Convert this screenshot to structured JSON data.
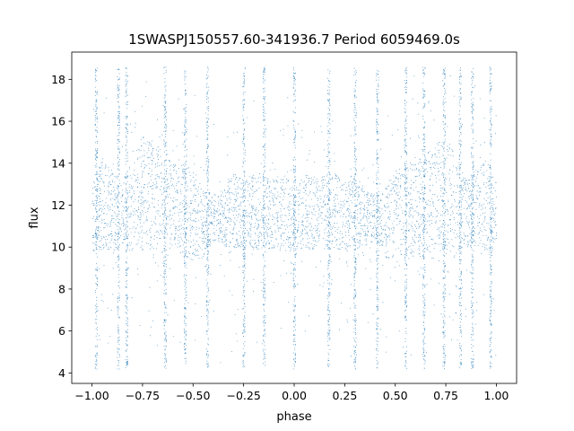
{
  "chart_data": {
    "type": "scatter",
    "title": "1SWASPJ150557.60-341936.7 Period 6059469.0s",
    "xlabel": "phase",
    "ylabel": "flux",
    "xlim": [
      -1.1,
      1.1
    ],
    "ylim": [
      3.5,
      19.3
    ],
    "xticks": [
      -1.0,
      -0.75,
      -0.5,
      -0.25,
      0.0,
      0.25,
      0.5,
      0.75,
      1.0
    ],
    "xtick_labels": [
      "−1.00",
      "−0.75",
      "−0.50",
      "−0.25",
      "0.00",
      "0.25",
      "0.50",
      "0.75",
      "1.00"
    ],
    "yticks": [
      4,
      6,
      8,
      10,
      12,
      14,
      16,
      18
    ],
    "ytick_labels": [
      "4",
      "6",
      "8",
      "10",
      "12",
      "14",
      "16",
      "18"
    ],
    "grid": false,
    "legend": false,
    "marker_color": "#1f77b4",
    "series": [
      {
        "phase_range": [
          -1.0,
          1.0
        ],
        "mirrored_about_phase_zero": true,
        "flux_band_profile": {
          "phase": [
            0.0,
            0.05,
            0.1,
            0.15,
            0.2,
            0.25,
            0.3,
            0.35,
            0.4,
            0.45,
            0.5,
            0.55,
            0.6,
            0.65,
            0.7,
            0.75,
            0.8,
            0.85,
            0.9,
            0.95,
            1.0
          ],
          "band_low": [
            9.6,
            9.9,
            9.9,
            9.9,
            9.9,
            9.9,
            9.9,
            10.1,
            10.3,
            9.5,
            9.4,
            9.5,
            9.5,
            9.7,
            9.8,
            9.9,
            9.7,
            10.1,
            9.9,
            9.9,
            9.8
          ],
          "band_high": [
            12.8,
            13.5,
            13.3,
            13.5,
            13.5,
            13.3,
            13.5,
            12.8,
            12.5,
            12.8,
            13.7,
            14.0,
            14.0,
            14.6,
            15.0,
            15.3,
            14.2,
            13.2,
            13.7,
            14.3,
            13.0
          ]
        },
        "flux_outlier_range": [
          4.2,
          18.6
        ],
        "tall_spikes_at_phase": [
          -0.98,
          -0.87,
          -0.83,
          -0.64,
          -0.54,
          -0.43,
          -0.25,
          -0.15,
          0.0,
          0.17,
          0.3,
          0.41,
          0.55,
          0.64,
          0.74,
          0.82,
          0.88,
          0.97
        ]
      }
    ]
  }
}
